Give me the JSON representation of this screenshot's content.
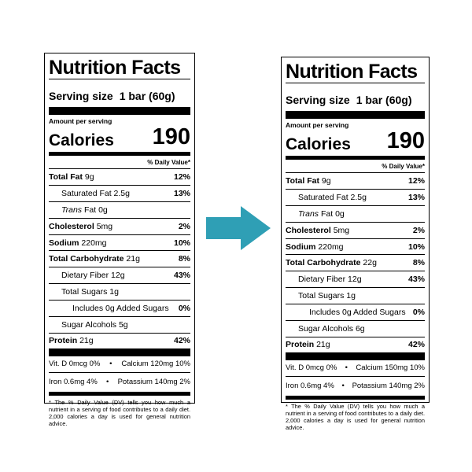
{
  "labels": [
    {
      "title": "Nutrition Facts",
      "serving_label": "Serving size",
      "serving_amount": "1 bar (60g)",
      "amount_per_serving": "Amount per serving",
      "calories_label": "Calories",
      "calories_value": "190",
      "daily_value_header": "% Daily Value*",
      "nutrients": [
        {
          "name": "Total Fat",
          "amount": "9g",
          "dv": "12%"
        },
        {
          "name": "Saturated Fat 2.5g",
          "amount": "",
          "dv": "13%"
        },
        {
          "name": "Trans",
          "amount": "Fat 0g",
          "dv": ""
        },
        {
          "name": "Cholesterol",
          "amount": "5mg",
          "dv": "2%"
        },
        {
          "name": "Sodium",
          "amount": "220mg",
          "dv": "10%"
        },
        {
          "name": "Total Carbohydrate",
          "amount": "21g",
          "dv": "8%"
        },
        {
          "name": "Dietary Fiber 12g",
          "amount": "",
          "dv": "43%"
        },
        {
          "name": "Total Sugars 1g",
          "amount": "",
          "dv": ""
        },
        {
          "name": "Includes 0g Added Sugars",
          "amount": "",
          "dv": "0%"
        },
        {
          "name": "Sugar Alcohols 5g",
          "amount": "",
          "dv": ""
        },
        {
          "name": "Protein",
          "amount": "21g",
          "dv": "42%"
        }
      ],
      "vitamins": [
        {
          "left": "Vit. D 0mcg 0%",
          "sep": "•",
          "right": "Calcium 120mg 10%"
        },
        {
          "left": "Iron 0.6mg 4%",
          "sep": "•",
          "right": "Potassium 140mg 2%"
        }
      ],
      "footnote": "* The % Daily Value (DV) tells you how much a nutrient in a serving of food contributes to a daily diet. 2,000 calories a day is used for general nutrition advice."
    },
    {
      "title": "Nutrition Facts",
      "serving_label": "Serving size",
      "serving_amount": "1 bar (60g)",
      "amount_per_serving": "Amount per serving",
      "calories_label": "Calories",
      "calories_value": "190",
      "daily_value_header": "% Daily Value*",
      "nutrients": [
        {
          "name": "Total Fat",
          "amount": "9g",
          "dv": "12%"
        },
        {
          "name": "Saturated Fat 2.5g",
          "amount": "",
          "dv": "13%"
        },
        {
          "name": "Trans",
          "amount": "Fat 0g",
          "dv": ""
        },
        {
          "name": "Cholesterol",
          "amount": "5mg",
          "dv": "2%"
        },
        {
          "name": "Sodium",
          "amount": "220mg",
          "dv": "10%"
        },
        {
          "name": "Total Carbohydrate",
          "amount": "22g",
          "dv": "8%"
        },
        {
          "name": "Dietary Fiber 12g",
          "amount": "",
          "dv": "43%"
        },
        {
          "name": "Total Sugars 1g",
          "amount": "",
          "dv": ""
        },
        {
          "name": "Includes 0g Added Sugars",
          "amount": "",
          "dv": "0%"
        },
        {
          "name": "Sugar Alcohols 6g",
          "amount": "",
          "dv": ""
        },
        {
          "name": "Protein",
          "amount": "21g",
          "dv": "42%"
        }
      ],
      "vitamins": [
        {
          "left": "Vit. D 0mcg 0%",
          "sep": "•",
          "right": "Calcium 150mg 10%"
        },
        {
          "left": "Iron 0.6mg 4%",
          "sep": "•",
          "right": "Potassium 140mg 2%"
        }
      ],
      "footnote": "* The % Daily Value (DV) tells you how much a nutrient in a serving of food contributes to a daily diet. 2,000 calories a day is used for general nutrition advice."
    }
  ],
  "arrow": {
    "icon": "right-arrow-icon",
    "color": "#2f9fb5"
  }
}
